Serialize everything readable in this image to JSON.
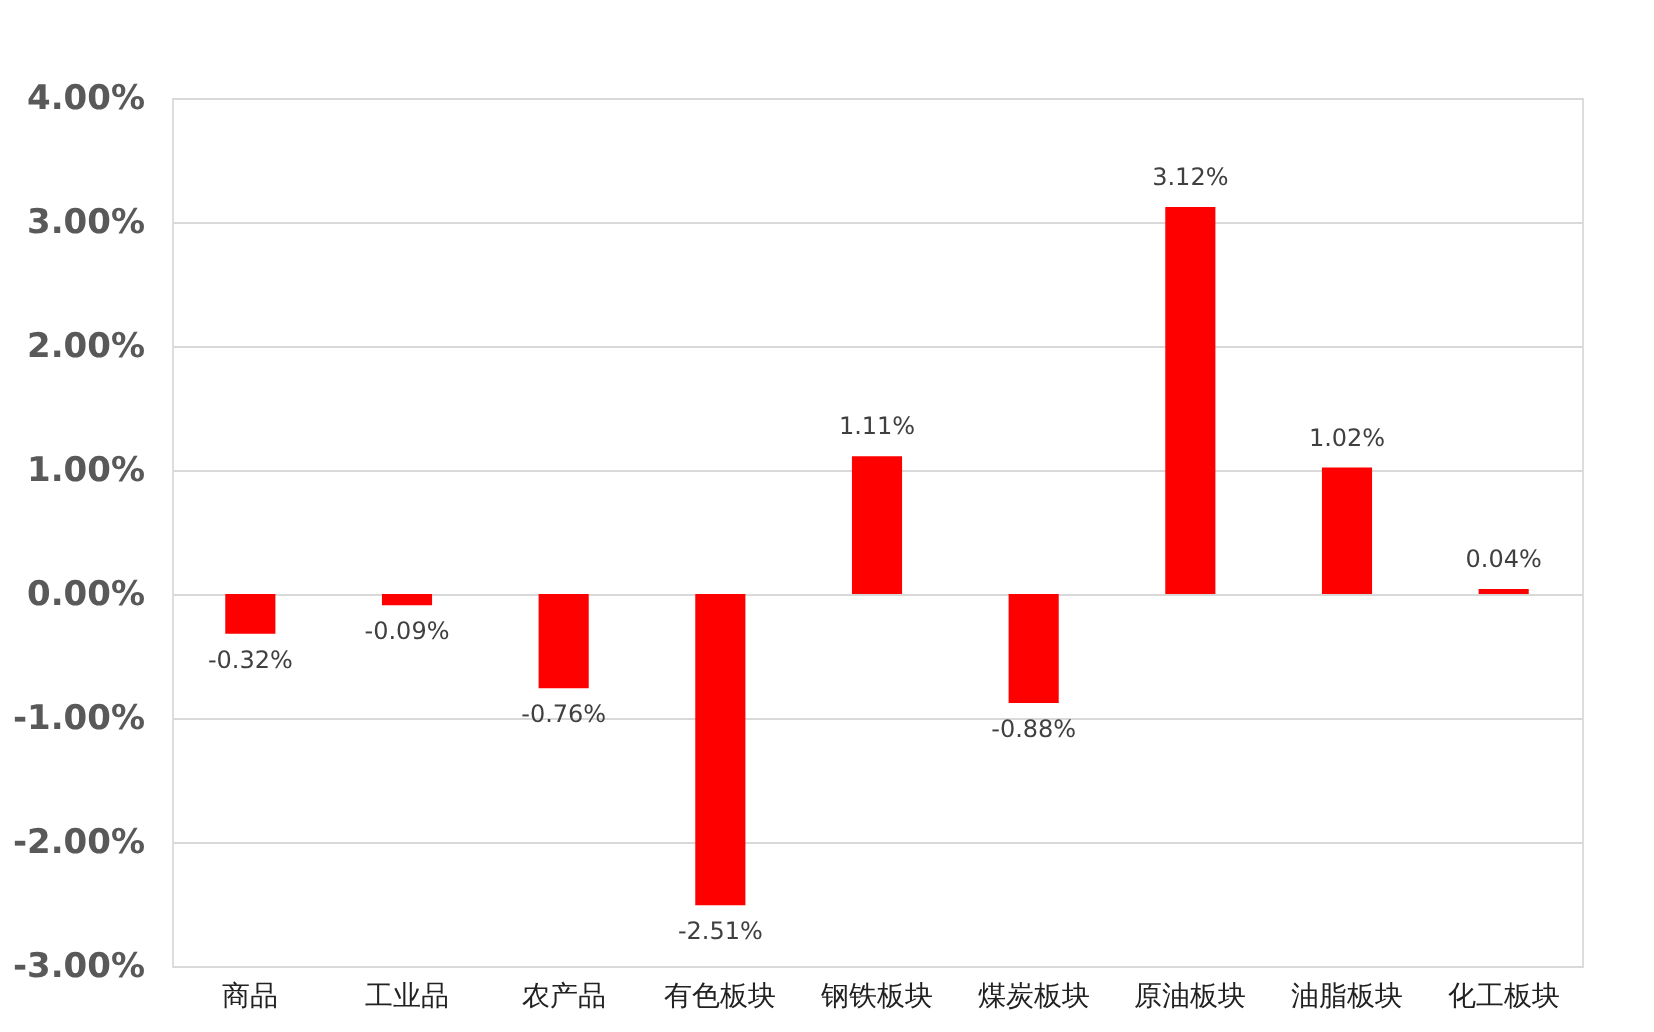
{
  "chart_data": {
    "type": "bar",
    "categories": [
      "商品",
      "工业品",
      "农产品",
      "有色板块",
      "钢铁板块",
      "煤炭板块",
      "原油板块",
      "油脂板块",
      "化工板块"
    ],
    "values": [
      -0.32,
      -0.09,
      -0.76,
      -2.51,
      1.11,
      -0.88,
      3.12,
      1.02,
      0.04
    ],
    "value_labels": [
      "-0.32%",
      "-0.09%",
      "-0.76%",
      "-2.51%",
      "1.11%",
      "-0.88%",
      "3.12%",
      "1.02%",
      "0.04%"
    ],
    "color": "#ff0000",
    "ylim": [
      -3,
      4
    ],
    "yticks": [
      {
        "value": -3,
        "label": "-3.00%"
      },
      {
        "value": -2,
        "label": "-2.00%"
      },
      {
        "value": -1,
        "label": "-1.00%"
      },
      {
        "value": 0,
        "label": "0.00%"
      },
      {
        "value": 1,
        "label": "1.00%"
      },
      {
        "value": 2,
        "label": "2.00%"
      },
      {
        "value": 3,
        "label": "3.00%"
      },
      {
        "value": 4,
        "label": "4.00%"
      }
    ],
    "grid": "y"
  }
}
